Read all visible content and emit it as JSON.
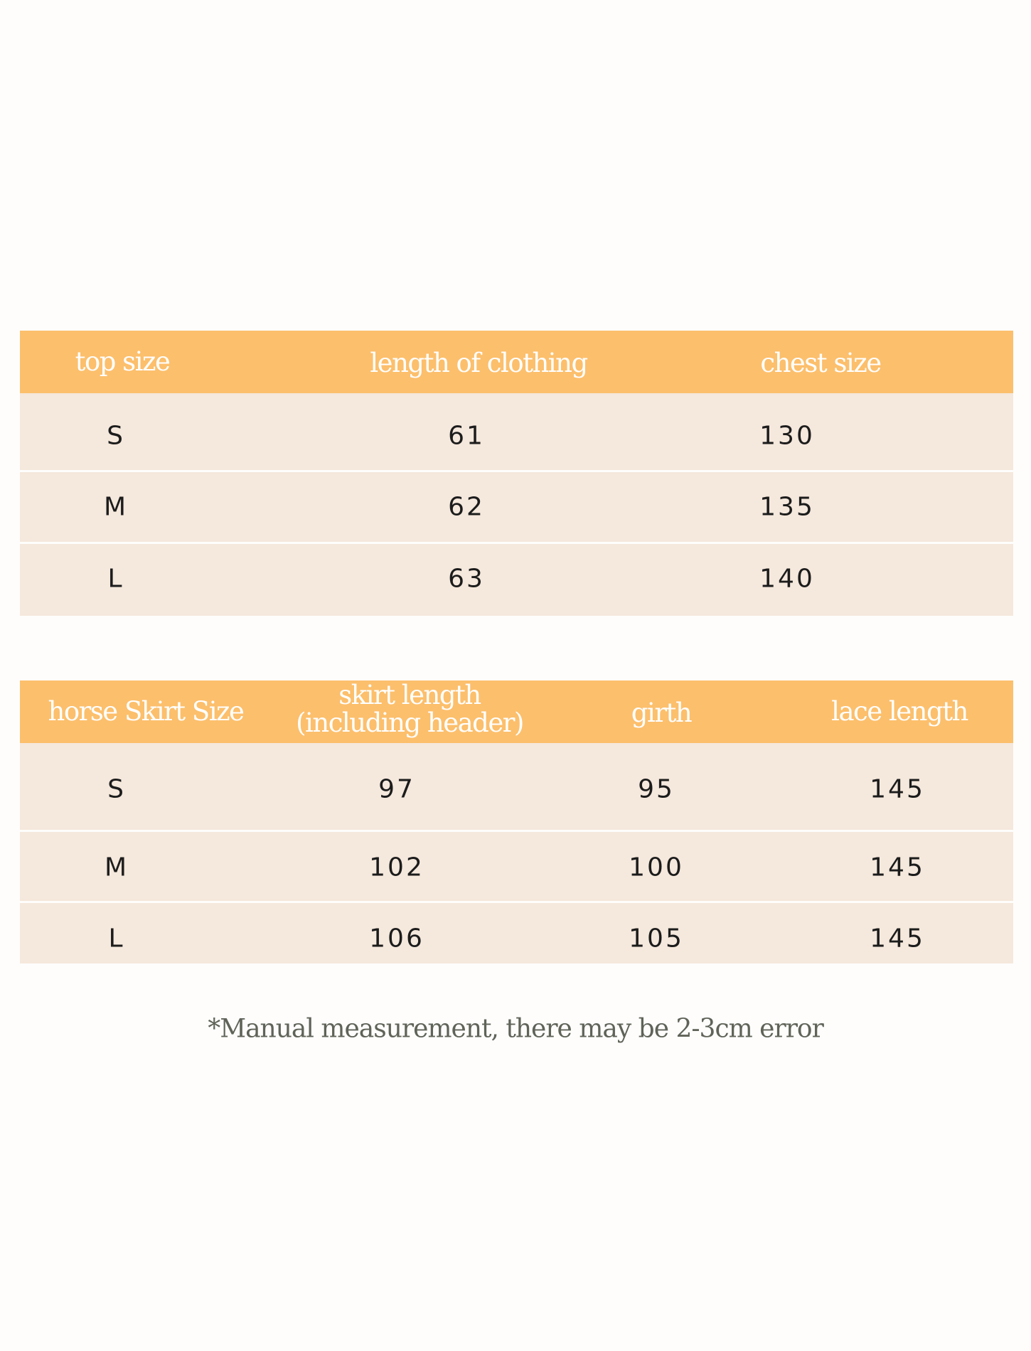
{
  "colors": {
    "header": "#fcbf6c",
    "row": "#f5e8dc",
    "header_text": "#ffffff",
    "note_text": "#5f6358"
  },
  "top_table": {
    "headers": [
      "top size",
      "length of clothing",
      "chest size"
    ],
    "rows": [
      [
        "S",
        "61",
        "130"
      ],
      [
        "M",
        "62",
        "135"
      ],
      [
        "L",
        "63",
        "140"
      ]
    ]
  },
  "skirt_table": {
    "headers": [
      "horse Skirt Size",
      "skirt length",
      "(including header)",
      "girth",
      "lace length"
    ],
    "rows": [
      [
        "S",
        "97",
        "95",
        "145"
      ],
      [
        "M",
        "102",
        "100",
        "145"
      ],
      [
        "L",
        "106",
        "105",
        "145"
      ]
    ]
  },
  "note": "*Manual measurement, there may be 2-3cm error"
}
